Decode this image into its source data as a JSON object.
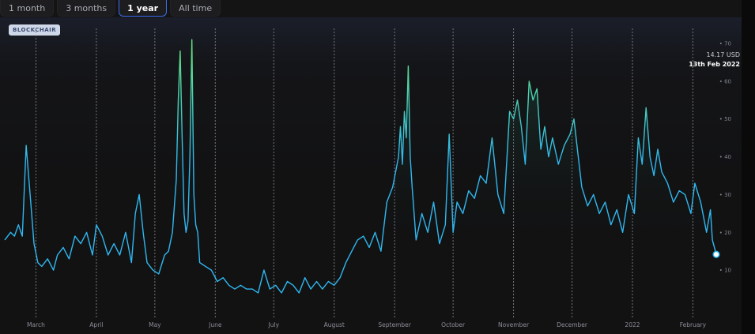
{
  "tabs": [
    {
      "label": "1 month",
      "active": false
    },
    {
      "label": "3 months",
      "active": false
    },
    {
      "label": "1 year",
      "active": true
    },
    {
      "label": "All time",
      "active": false
    }
  ],
  "watermark": "BLOCKCHAIR",
  "tooltip": {
    "value": "14.17 USD",
    "date": "13th Feb 2022"
  },
  "colors": {
    "low": "#2fb7f0",
    "high": "#63e27a",
    "marker": "#ffffff"
  },
  "chart_data": {
    "type": "line",
    "x_range": [
      "2021-02-13",
      "2022-02-13"
    ],
    "ylim": [
      0,
      70
    ],
    "y_ticks": [
      10,
      20,
      30,
      40,
      50,
      60,
      70
    ],
    "month_ticks": [
      {
        "label": "March",
        "date": "2021-03-01"
      },
      {
        "label": "April",
        "date": "2021-04-01"
      },
      {
        "label": "May",
        "date": "2021-05-01"
      },
      {
        "label": "June",
        "date": "2021-06-01"
      },
      {
        "label": "July",
        "date": "2021-07-01"
      },
      {
        "label": "August",
        "date": "2021-08-01"
      },
      {
        "label": "September",
        "date": "2021-09-01"
      },
      {
        "label": "October",
        "date": "2021-10-01"
      },
      {
        "label": "November",
        "date": "2021-11-01"
      },
      {
        "label": "December",
        "date": "2021-12-01"
      },
      {
        "label": "2022",
        "date": "2022-01-01"
      },
      {
        "label": "February",
        "date": "2022-02-01"
      }
    ],
    "series": [
      {
        "points": [
          [
            "2021-02-13",
            18
          ],
          [
            "2021-02-16",
            20
          ],
          [
            "2021-02-18",
            19
          ],
          [
            "2021-02-20",
            22
          ],
          [
            "2021-02-22",
            19
          ],
          [
            "2021-02-24",
            43
          ],
          [
            "2021-02-26",
            30
          ],
          [
            "2021-02-28",
            17
          ],
          [
            "2021-03-02",
            12
          ],
          [
            "2021-03-04",
            11
          ],
          [
            "2021-03-07",
            13
          ],
          [
            "2021-03-10",
            10
          ],
          [
            "2021-03-12",
            14
          ],
          [
            "2021-03-15",
            16
          ],
          [
            "2021-03-18",
            13
          ],
          [
            "2021-03-21",
            19
          ],
          [
            "2021-03-24",
            17
          ],
          [
            "2021-03-27",
            20
          ],
          [
            "2021-03-30",
            14
          ],
          [
            "2021-04-01",
            22
          ],
          [
            "2021-04-04",
            19
          ],
          [
            "2021-04-07",
            14
          ],
          [
            "2021-04-10",
            17
          ],
          [
            "2021-04-13",
            14
          ],
          [
            "2021-04-16",
            20
          ],
          [
            "2021-04-19",
            12
          ],
          [
            "2021-04-21",
            25
          ],
          [
            "2021-04-23",
            30
          ],
          [
            "2021-04-25",
            20
          ],
          [
            "2021-04-27",
            12
          ],
          [
            "2021-04-30",
            10
          ],
          [
            "2021-05-03",
            9
          ],
          [
            "2021-05-06",
            14
          ],
          [
            "2021-05-08",
            15
          ],
          [
            "2021-05-10",
            20
          ],
          [
            "2021-05-12",
            34
          ],
          [
            "2021-05-13",
            55
          ],
          [
            "2021-05-14",
            68
          ],
          [
            "2021-05-15",
            45
          ],
          [
            "2021-05-16",
            25
          ],
          [
            "2021-05-17",
            20
          ],
          [
            "2021-05-18",
            23
          ],
          [
            "2021-05-19",
            40
          ],
          [
            "2021-05-20",
            71
          ],
          [
            "2021-05-21",
            30
          ],
          [
            "2021-05-22",
            22
          ],
          [
            "2021-05-23",
            20
          ],
          [
            "2021-05-24",
            12
          ],
          [
            "2021-05-27",
            11
          ],
          [
            "2021-05-30",
            10
          ],
          [
            "2021-06-02",
            7
          ],
          [
            "2021-06-05",
            8
          ],
          [
            "2021-06-08",
            6
          ],
          [
            "2021-06-11",
            5
          ],
          [
            "2021-06-14",
            6
          ],
          [
            "2021-06-17",
            5
          ],
          [
            "2021-06-20",
            5
          ],
          [
            "2021-06-23",
            4
          ],
          [
            "2021-06-26",
            10
          ],
          [
            "2021-06-29",
            5
          ],
          [
            "2021-07-02",
            6
          ],
          [
            "2021-07-05",
            4
          ],
          [
            "2021-07-08",
            7
          ],
          [
            "2021-07-11",
            6
          ],
          [
            "2021-07-14",
            4
          ],
          [
            "2021-07-17",
            8
          ],
          [
            "2021-07-20",
            5
          ],
          [
            "2021-07-23",
            7
          ],
          [
            "2021-07-26",
            5
          ],
          [
            "2021-07-29",
            7
          ],
          [
            "2021-08-01",
            6
          ],
          [
            "2021-08-04",
            8
          ],
          [
            "2021-08-07",
            12
          ],
          [
            "2021-08-10",
            15
          ],
          [
            "2021-08-13",
            18
          ],
          [
            "2021-08-16",
            19
          ],
          [
            "2021-08-19",
            16
          ],
          [
            "2021-08-22",
            20
          ],
          [
            "2021-08-25",
            15
          ],
          [
            "2021-08-28",
            28
          ],
          [
            "2021-08-31",
            32
          ],
          [
            "2021-09-03",
            40
          ],
          [
            "2021-09-04",
            48
          ],
          [
            "2021-09-05",
            38
          ],
          [
            "2021-09-06",
            52
          ],
          [
            "2021-09-07",
            45
          ],
          [
            "2021-09-08",
            64
          ],
          [
            "2021-09-09",
            40
          ],
          [
            "2021-09-10",
            32
          ],
          [
            "2021-09-12",
            18
          ],
          [
            "2021-09-15",
            25
          ],
          [
            "2021-09-18",
            20
          ],
          [
            "2021-09-21",
            28
          ],
          [
            "2021-09-24",
            17
          ],
          [
            "2021-09-27",
            22
          ],
          [
            "2021-09-29",
            46
          ],
          [
            "2021-10-01",
            20
          ],
          [
            "2021-10-03",
            28
          ],
          [
            "2021-10-06",
            25
          ],
          [
            "2021-10-09",
            31
          ],
          [
            "2021-10-12",
            29
          ],
          [
            "2021-10-15",
            35
          ],
          [
            "2021-10-18",
            33
          ],
          [
            "2021-10-21",
            45
          ],
          [
            "2021-10-24",
            30
          ],
          [
            "2021-10-27",
            25
          ],
          [
            "2021-10-30",
            52
          ],
          [
            "2021-11-01",
            50
          ],
          [
            "2021-11-03",
            55
          ],
          [
            "2021-11-05",
            48
          ],
          [
            "2021-11-07",
            38
          ],
          [
            "2021-11-09",
            60
          ],
          [
            "2021-11-11",
            55
          ],
          [
            "2021-11-13",
            58
          ],
          [
            "2021-11-15",
            42
          ],
          [
            "2021-11-17",
            48
          ],
          [
            "2021-11-19",
            40
          ],
          [
            "2021-11-21",
            45
          ],
          [
            "2021-11-24",
            38
          ],
          [
            "2021-11-27",
            43
          ],
          [
            "2021-11-30",
            46
          ],
          [
            "2021-12-02",
            50
          ],
          [
            "2021-12-04",
            41
          ],
          [
            "2021-12-06",
            32
          ],
          [
            "2021-12-09",
            27
          ],
          [
            "2021-12-12",
            30
          ],
          [
            "2021-12-15",
            25
          ],
          [
            "2021-12-18",
            28
          ],
          [
            "2021-12-21",
            22
          ],
          [
            "2021-12-24",
            26
          ],
          [
            "2021-12-27",
            20
          ],
          [
            "2021-12-30",
            30
          ],
          [
            "2022-01-02",
            25
          ],
          [
            "2022-01-04",
            45
          ],
          [
            "2022-01-06",
            38
          ],
          [
            "2022-01-08",
            53
          ],
          [
            "2022-01-10",
            40
          ],
          [
            "2022-01-12",
            35
          ],
          [
            "2022-01-14",
            42
          ],
          [
            "2022-01-16",
            36
          ],
          [
            "2022-01-19",
            33
          ],
          [
            "2022-01-22",
            28
          ],
          [
            "2022-01-25",
            31
          ],
          [
            "2022-01-28",
            30
          ],
          [
            "2022-01-31",
            25
          ],
          [
            "2022-02-02",
            33
          ],
          [
            "2022-02-05",
            28
          ],
          [
            "2022-02-08",
            20
          ],
          [
            "2022-02-10",
            26
          ],
          [
            "2022-02-11",
            18
          ],
          [
            "2022-02-13",
            14.17
          ]
        ]
      }
    ]
  }
}
